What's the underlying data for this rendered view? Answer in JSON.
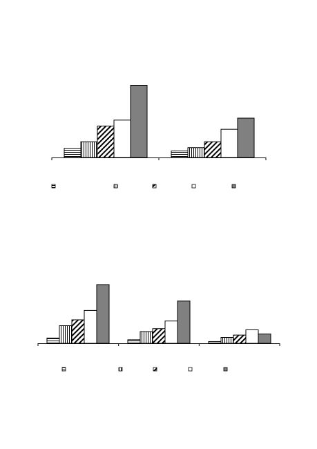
{
  "chart_data": [
    {
      "type": "bar",
      "categories": [
        "",
        ""
      ],
      "series": [
        {
          "values": [
            7,
            5
          ],
          "pattern": "horizontal-lines"
        },
        {
          "values": [
            12,
            7.5
          ],
          "pattern": "vertical-lines"
        },
        {
          "values": [
            24,
            12
          ],
          "pattern": "diagonal-lines"
        },
        {
          "values": [
            28.5,
            21.5
          ],
          "pattern": "white"
        },
        {
          "values": [
            55,
            30
          ],
          "pattern": "solid-gray"
        }
      ],
      "ylim": [
        0,
        60
      ],
      "grid": false,
      "legend": "bottom",
      "title": "",
      "xlabel": "",
      "ylabel": ""
    },
    {
      "type": "bar",
      "categories": [
        "",
        "",
        ""
      ],
      "series": [
        {
          "values": [
            4.5,
            3,
            1.5
          ],
          "pattern": "horizontal-lines"
        },
        {
          "values": [
            15,
            10,
            5
          ],
          "pattern": "vertical-lines"
        },
        {
          "values": [
            20,
            12.5,
            7
          ],
          "pattern": "diagonal-lines"
        },
        {
          "values": [
            28,
            19,
            11.5
          ],
          "pattern": "white"
        },
        {
          "values": [
            50,
            36,
            8
          ],
          "pattern": "solid-gray"
        }
      ],
      "ylim": [
        0,
        60
      ],
      "grid": false,
      "legend": "bottom",
      "title": "",
      "xlabel": "",
      "ylabel": ""
    }
  ],
  "colors": {
    "stroke": "#000000",
    "gray_fill": "#808080",
    "white_fill": "#ffffff"
  }
}
